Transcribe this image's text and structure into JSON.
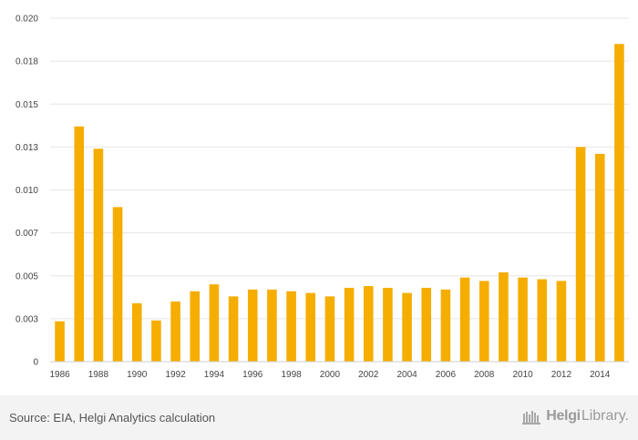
{
  "chart_data": {
    "type": "bar",
    "title": "",
    "xlabel": "",
    "ylabel": "",
    "ylim": [
      0,
      0.02
    ],
    "y_ticks": [
      "0",
      "0.003",
      "0.005",
      "0.007",
      "0.010",
      "0.013",
      "0.015",
      "0.018",
      "0.020"
    ],
    "y_tick_values": [
      0,
      0.0025,
      0.005,
      0.0075,
      0.01,
      0.0125,
      0.015,
      0.0175,
      0.02
    ],
    "x_tick_labels": [
      "1986",
      "1988",
      "1990",
      "1992",
      "1994",
      "1996",
      "1998",
      "2000",
      "2002",
      "2004",
      "2006",
      "2008",
      "2010",
      "2012",
      "2014"
    ],
    "categories": [
      "1986",
      "1987",
      "1988",
      "1989",
      "1990",
      "1991",
      "1992",
      "1993",
      "1994",
      "1995",
      "1996",
      "1997",
      "1998",
      "1999",
      "2000",
      "2001",
      "2002",
      "2003",
      "2004",
      "2005",
      "2006",
      "2007",
      "2008",
      "2009",
      "2010",
      "2011",
      "2012",
      "2013",
      "2014",
      "2015"
    ],
    "values": [
      0.00235,
      0.0137,
      0.0124,
      0.009,
      0.0034,
      0.0024,
      0.0035,
      0.0041,
      0.0045,
      0.0038,
      0.0042,
      0.0042,
      0.0041,
      0.004,
      0.0038,
      0.0043,
      0.0044,
      0.0043,
      0.004,
      0.0043,
      0.0042,
      0.0049,
      0.0047,
      0.0052,
      0.0049,
      0.0048,
      0.0047,
      0.0125,
      0.0121,
      0.0185
    ],
    "bar_color": "#f5ad00",
    "grid": true
  },
  "footer": {
    "source": "Source: EIA, Helgi Analytics calculation",
    "brand_name": "Helgi",
    "brand_suffix": "Library."
  }
}
